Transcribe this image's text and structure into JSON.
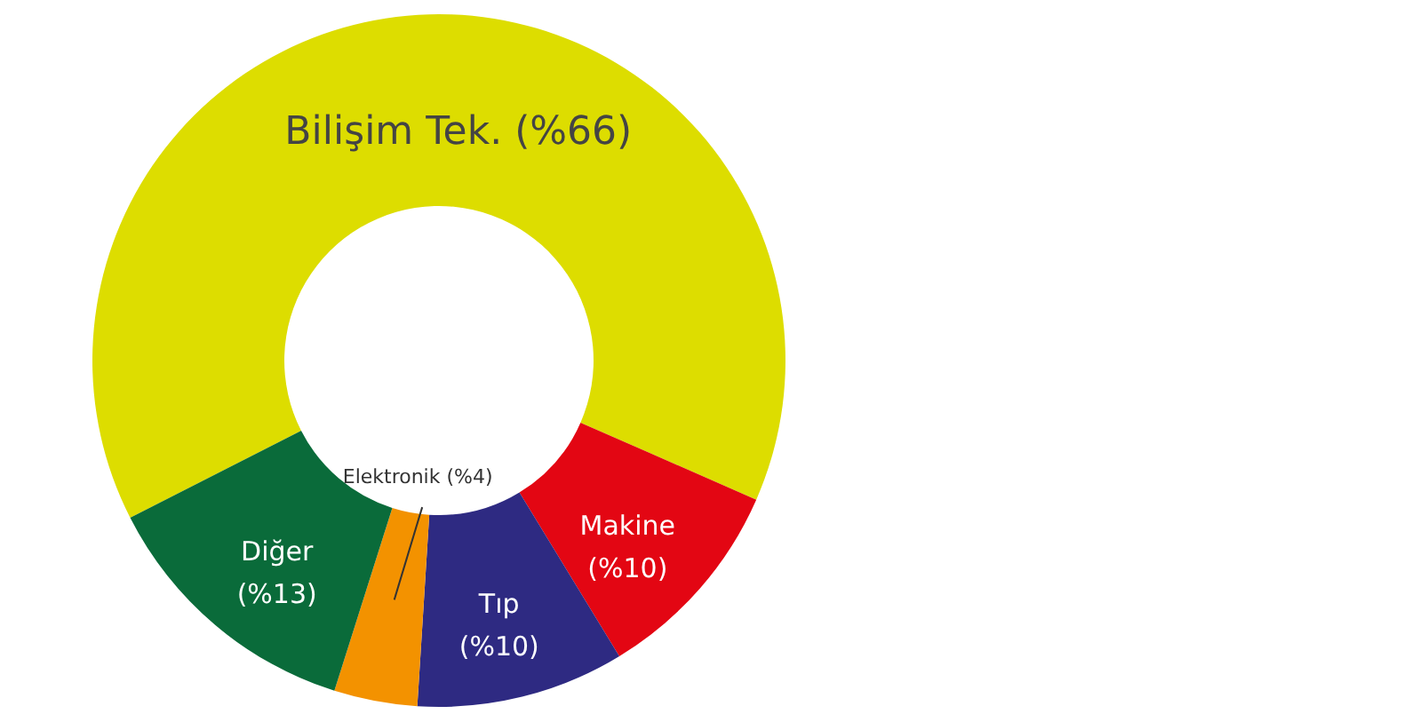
{
  "chart_data": {
    "type": "donut",
    "categories": [
      "Bilişim Tek.",
      "Makine",
      "Tıp",
      "Elektronik",
      "Diğer"
    ],
    "values": [
      66,
      10,
      10,
      4,
      13
    ],
    "colors": [
      "#dddd00",
      "#e30613",
      "#2e2a82",
      "#f39200",
      "#0a6b3a"
    ],
    "value_labels": [
      "(%66)",
      "(%10)",
      "(%10)",
      "(%4)",
      "(%13)"
    ]
  }
}
